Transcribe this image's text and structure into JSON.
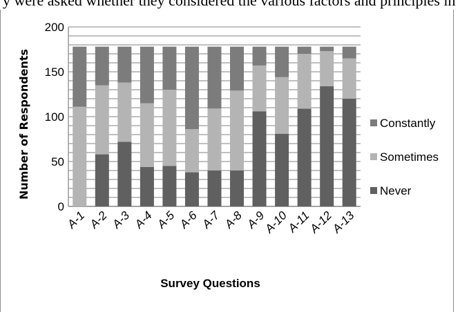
{
  "top_text": "y were asked whether they considered the various factors and principles in their",
  "chart_data": {
    "type": "bar",
    "stacked": true,
    "categories": [
      "A-1",
      "A-2",
      "A-3",
      "A-4",
      "A-5",
      "A-6",
      "A-7",
      "A-8",
      "A-9",
      "A-10",
      "A-11",
      "A-12",
      "A-13"
    ],
    "series": [
      {
        "name": "Never",
        "values": [
          0,
          58,
          72,
          44,
          45,
          38,
          40,
          40,
          106,
          81,
          109,
          134,
          120
        ],
        "color": "#606060"
      },
      {
        "name": "Sometimes",
        "values": [
          111,
          77,
          66,
          71,
          85,
          48,
          69,
          89,
          51,
          63,
          61,
          39,
          45
        ],
        "color": "#b4b4b4"
      },
      {
        "name": "Constantly",
        "values": [
          67,
          43,
          40,
          63,
          48,
          92,
          69,
          49,
          21,
          34,
          8,
          5,
          13
        ],
        "color": "#7c7c7c"
      }
    ],
    "xlabel": "Survey Questions",
    "ylabel": "Number of Respondents",
    "ylim": [
      0,
      200
    ],
    "yticks": [
      "0",
      "50",
      "100",
      "150",
      "200"
    ],
    "grid": true,
    "legend_position": "right"
  }
}
